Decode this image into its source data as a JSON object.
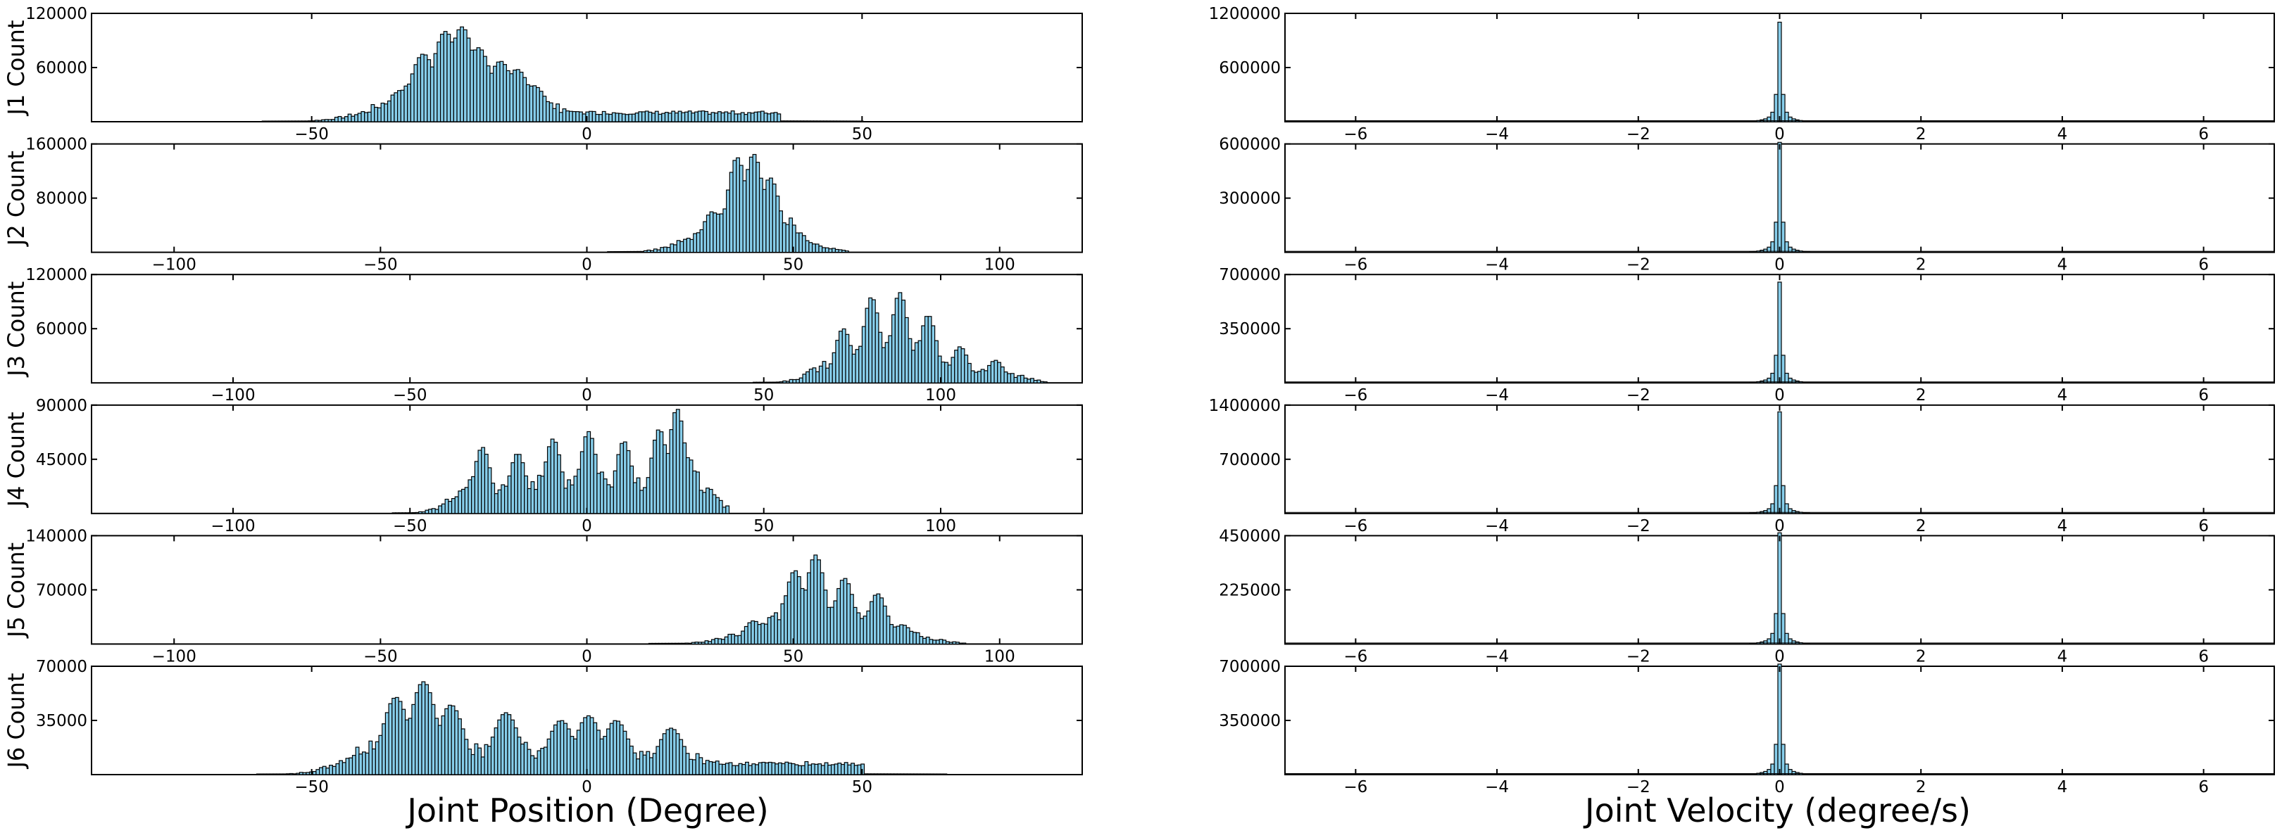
{
  "figure": {
    "bar_color": "#87CEEB",
    "xlabel_left": "Joint Position (Degree)",
    "xlabel_right": "Joint Velocity (degree/s)"
  },
  "chart_data": [
    {
      "type": "bar",
      "joint": "J1",
      "panel": "position",
      "ylabel": "J1 Count",
      "xlim": [
        -90,
        90
      ],
      "ylim": [
        0,
        120000
      ],
      "xticks": [
        -50,
        0,
        50
      ],
      "yticks": [
        60000,
        120000
      ],
      "peaks": [
        {
          "x": -34,
          "y": 35000
        },
        {
          "x": -30,
          "y": 75000
        },
        {
          "x": -26,
          "y": 100000
        },
        {
          "x": -23,
          "y": 105000
        },
        {
          "x": -20,
          "y": 82000
        },
        {
          "x": -16,
          "y": 67000
        },
        {
          "x": -13,
          "y": 58000
        },
        {
          "x": -10,
          "y": 40000
        }
      ],
      "plateau": {
        "from": -5,
        "to": 35,
        "y": 10000
      }
    },
    {
      "type": "bar",
      "joint": "J1",
      "panel": "velocity",
      "ylabel": "",
      "xlim": [
        -7,
        7
      ],
      "ylim": [
        0,
        1200000
      ],
      "xticks": [
        -6,
        -4,
        -2,
        0,
        2,
        4,
        6
      ],
      "yticks": [
        600000,
        1200000
      ],
      "peak": {
        "x": 0,
        "y": 1050000
      }
    },
    {
      "type": "bar",
      "joint": "J2",
      "panel": "position",
      "ylabel": "J2 Count",
      "xlim": [
        -120,
        120
      ],
      "ylim": [
        0,
        160000
      ],
      "xticks": [
        -100,
        -50,
        0,
        50,
        100
      ],
      "yticks": [
        80000,
        160000
      ],
      "peaks": [
        {
          "x": 30,
          "y": 60000
        },
        {
          "x": 36,
          "y": 140000
        },
        {
          "x": 40,
          "y": 145000
        },
        {
          "x": 44,
          "y": 110000
        },
        {
          "x": 48,
          "y": 40000
        }
      ]
    },
    {
      "type": "bar",
      "joint": "J2",
      "panel": "velocity",
      "ylabel": "",
      "xlim": [
        -7,
        7
      ],
      "ylim": [
        0,
        600000
      ],
      "xticks": [
        -6,
        -4,
        -2,
        0,
        2,
        4,
        6
      ],
      "yticks": [
        300000,
        600000
      ],
      "peak": {
        "x": 0,
        "y": 580000
      }
    },
    {
      "type": "bar",
      "joint": "J3",
      "panel": "position",
      "ylabel": "J3 Count",
      "xlim": [
        -140,
        140
      ],
      "ylim": [
        0,
        120000
      ],
      "xticks": [
        -100,
        -50,
        0,
        50,
        100
      ],
      "yticks": [
        60000,
        120000
      ],
      "peaks": [
        {
          "x": 72,
          "y": 60000
        },
        {
          "x": 80,
          "y": 95000
        },
        {
          "x": 88,
          "y": 100000
        },
        {
          "x": 96,
          "y": 75000
        },
        {
          "x": 105,
          "y": 40000
        },
        {
          "x": 115,
          "y": 25000
        }
      ]
    },
    {
      "type": "bar",
      "joint": "J3",
      "panel": "velocity",
      "ylabel": "",
      "xlim": [
        -7,
        7
      ],
      "ylim": [
        0,
        700000
      ],
      "xticks": [
        -6,
        -4,
        -2,
        0,
        2,
        4,
        6
      ],
      "yticks": [
        350000,
        700000
      ],
      "peak": {
        "x": 0,
        "y": 620000
      }
    },
    {
      "type": "bar",
      "joint": "J4",
      "panel": "position",
      "ylabel": "J4 Count",
      "xlim": [
        -140,
        140
      ],
      "ylim": [
        0,
        90000
      ],
      "xticks": [
        -100,
        -50,
        0,
        50,
        100
      ],
      "yticks": [
        45000,
        90000
      ],
      "peaks": [
        {
          "x": -30,
          "y": 55000
        },
        {
          "x": -20,
          "y": 50000
        },
        {
          "x": -10,
          "y": 62000
        },
        {
          "x": 0,
          "y": 68000
        },
        {
          "x": 10,
          "y": 60000
        },
        {
          "x": 20,
          "y": 70000
        },
        {
          "x": 25,
          "y": 87000
        }
      ]
    },
    {
      "type": "bar",
      "joint": "J4",
      "panel": "velocity",
      "ylabel": "",
      "xlim": [
        -7,
        7
      ],
      "ylim": [
        0,
        1400000
      ],
      "xticks": [
        -6,
        -4,
        -2,
        0,
        2,
        4,
        6
      ],
      "yticks": [
        700000,
        1400000
      ],
      "peak": {
        "x": 0,
        "y": 1250000
      }
    },
    {
      "type": "bar",
      "joint": "J5",
      "panel": "position",
      "ylabel": "J5 Count",
      "xlim": [
        -120,
        120
      ],
      "ylim": [
        0,
        140000
      ],
      "xticks": [
        -100,
        -50,
        0,
        50,
        100
      ],
      "yticks": [
        70000,
        140000
      ],
      "peaks": [
        {
          "x": 40,
          "y": 30000
        },
        {
          "x": 50,
          "y": 95000
        },
        {
          "x": 55,
          "y": 115000
        },
        {
          "x": 62,
          "y": 85000
        },
        {
          "x": 70,
          "y": 65000
        },
        {
          "x": 76,
          "y": 25000
        }
      ]
    },
    {
      "type": "bar",
      "joint": "J5",
      "panel": "velocity",
      "ylabel": "",
      "xlim": [
        -7,
        7
      ],
      "ylim": [
        0,
        450000
      ],
      "xticks": [
        -6,
        -4,
        -2,
        0,
        2,
        4,
        6
      ],
      "yticks": [
        225000,
        450000
      ],
      "peak": {
        "x": 0,
        "y": 440000
      }
    },
    {
      "type": "bar",
      "joint": "J6",
      "panel": "position",
      "ylabel": "J6 Count",
      "xlim": [
        -90,
        90
      ],
      "ylim": [
        0,
        70000
      ],
      "xticks": [
        -50,
        0,
        50
      ],
      "yticks": [
        35000,
        70000
      ],
      "peaks": [
        {
          "x": -35,
          "y": 50000
        },
        {
          "x": -30,
          "y": 60000
        },
        {
          "x": -25,
          "y": 45000
        },
        {
          "x": -15,
          "y": 40000
        },
        {
          "x": -5,
          "y": 35000
        },
        {
          "x": 0,
          "y": 38000
        },
        {
          "x": 5,
          "y": 35000
        },
        {
          "x": 15,
          "y": 30000
        }
      ],
      "plateau": {
        "from": 20,
        "to": 50,
        "y": 7000
      }
    },
    {
      "type": "bar",
      "joint": "J6",
      "panel": "velocity",
      "ylabel": "",
      "xlim": [
        -7,
        7
      ],
      "ylim": [
        0,
        700000
      ],
      "xticks": [
        -6,
        -4,
        -2,
        0,
        2,
        4,
        6
      ],
      "yticks": [
        350000,
        700000
      ],
      "peak": {
        "x": 0,
        "y": 680000
      }
    }
  ]
}
